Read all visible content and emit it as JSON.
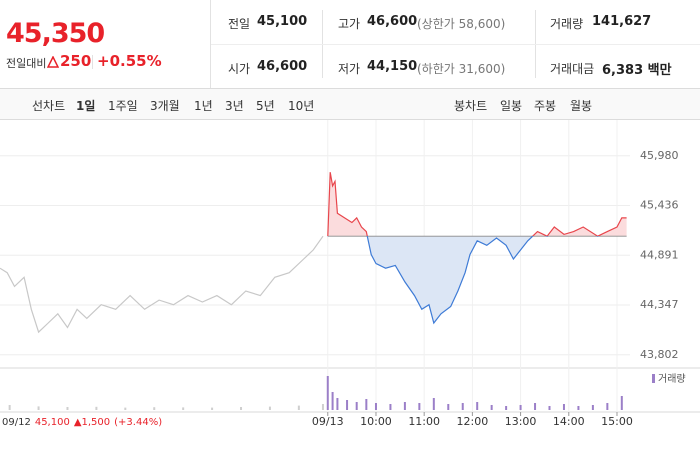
{
  "quote": {
    "price": "45,350",
    "change_label": "전일대비",
    "change": "250",
    "change_pct": "+0.55%"
  },
  "summary": [
    {
      "label": "전일",
      "value": "45,100"
    },
    {
      "label": "고가",
      "value": "46,600",
      "note": "(상한가 58,600)"
    },
    {
      "label": "거래량",
      "value": "141,627"
    },
    {
      "label": "시가",
      "value": "46,600"
    },
    {
      "label": "저가",
      "value": "44,150",
      "note": "(하한가 31,600)"
    },
    {
      "label": "거래대금",
      "value": "6,383 백만"
    }
  ],
  "tabs": {
    "line_label": "선차트",
    "line": [
      "1일",
      "1주일",
      "3개월",
      "1년",
      "3년",
      "5년",
      "10년"
    ],
    "candle_label": "봉차트",
    "candle": [
      "일봉",
      "주봉",
      "월봉"
    ]
  },
  "chart_data": {
    "type": "line",
    "xlim": [
      2.2,
      15.27
    ],
    "ylim": [
      43690,
      46120
    ],
    "xticks": [
      {
        "value": 9,
        "label": "09/13"
      },
      {
        "value": 10,
        "label": "10:00"
      },
      {
        "value": 11,
        "label": "11:00"
      },
      {
        "value": 12,
        "label": "12:00"
      },
      {
        "value": 13,
        "label": "13:00"
      },
      {
        "value": 14,
        "label": "14:00"
      },
      {
        "value": 15,
        "label": "15:00"
      }
    ],
    "yticks": [
      {
        "value": 45980,
        "label": "45,980"
      },
      {
        "value": 45436,
        "label": "45,436"
      },
      {
        "value": 44891,
        "label": "44,891"
      },
      {
        "value": 44347,
        "label": "44,347"
      },
      {
        "value": 43802,
        "label": "43,802"
      }
    ],
    "grid": true,
    "baseline": 45100,
    "up_color": "#e8464c",
    "down_color": "#3e7bd6",
    "series": [
      {
        "color": "#c8c8c8",
        "x": [
          2.2,
          2.35,
          2.5,
          2.7,
          2.85,
          3.0,
          3.2,
          3.4,
          3.6,
          3.8,
          4.0,
          4.3,
          4.6,
          4.9,
          5.2,
          5.5,
          5.8,
          6.1,
          6.4,
          6.7,
          7.0,
          7.3,
          7.6,
          7.9,
          8.2,
          8.5,
          8.7,
          8.9
        ],
        "values": [
          44750,
          44700,
          44550,
          44650,
          44300,
          44050,
          44150,
          44250,
          44100,
          44300,
          44200,
          44350,
          44300,
          44450,
          44300,
          44400,
          44350,
          44450,
          44380,
          44450,
          44350,
          44500,
          44450,
          44650,
          44700,
          44850,
          44950,
          45100
        ]
      },
      {
        "color": "split",
        "x": [
          9.0,
          9.05,
          9.1,
          9.15,
          9.2,
          9.35,
          9.5,
          9.6,
          9.7,
          9.8,
          9.9,
          10.0,
          10.2,
          10.4,
          10.6,
          10.8,
          10.95,
          11.1,
          11.2,
          11.35,
          11.55,
          11.7,
          11.85,
          11.95,
          12.1,
          12.3,
          12.5,
          12.7,
          12.85,
          13.0,
          13.15,
          13.35,
          13.55,
          13.7,
          13.9,
          14.1,
          14.3,
          14.6,
          14.8,
          15.0,
          15.1,
          15.2
        ],
        "values": [
          45100,
          45800,
          45650,
          45700,
          45350,
          45300,
          45250,
          45300,
          45200,
          45150,
          44900,
          44800,
          44750,
          44780,
          44600,
          44450,
          44300,
          44350,
          44150,
          44250,
          44330,
          44500,
          44700,
          44900,
          45050,
          45000,
          45080,
          45000,
          44850,
          44950,
          45050,
          45150,
          45100,
          45200,
          45120,
          45150,
          45200,
          45100,
          45150,
          45200,
          45300,
          45300
        ]
      }
    ],
    "volume": {
      "name": "거래량",
      "color": "#9b7fc8",
      "prev_color": "#cfcfcf",
      "ylim": [
        0,
        20000
      ],
      "x": [
        2.4,
        3.0,
        3.6,
        4.2,
        4.8,
        5.4,
        6.0,
        6.6,
        7.2,
        7.8,
        8.4,
        8.9,
        9.0,
        9.1,
        9.2,
        9.4,
        9.6,
        9.8,
        10.0,
        10.3,
        10.6,
        10.9,
        11.2,
        11.5,
        11.8,
        12.1,
        12.4,
        12.7,
        13.0,
        13.3,
        13.6,
        13.9,
        14.2,
        14.5,
        14.8,
        15.1
      ],
      "values": [
        2500,
        1800,
        1500,
        1600,
        1200,
        1400,
        1300,
        1200,
        1500,
        1700,
        2200,
        3000,
        17000,
        9000,
        6000,
        5000,
        4000,
        5500,
        3500,
        3000,
        4000,
        3500,
        6000,
        3000,
        3500,
        4000,
        2500,
        2000,
        2500,
        3500,
        2000,
        3000,
        2000,
        2500,
        3500,
        7000
      ]
    },
    "prev_label": {
      "date": "09/12",
      "price": "45,100",
      "change": "▲1,500",
      "change_pct": "(+3.44%)"
    }
  }
}
